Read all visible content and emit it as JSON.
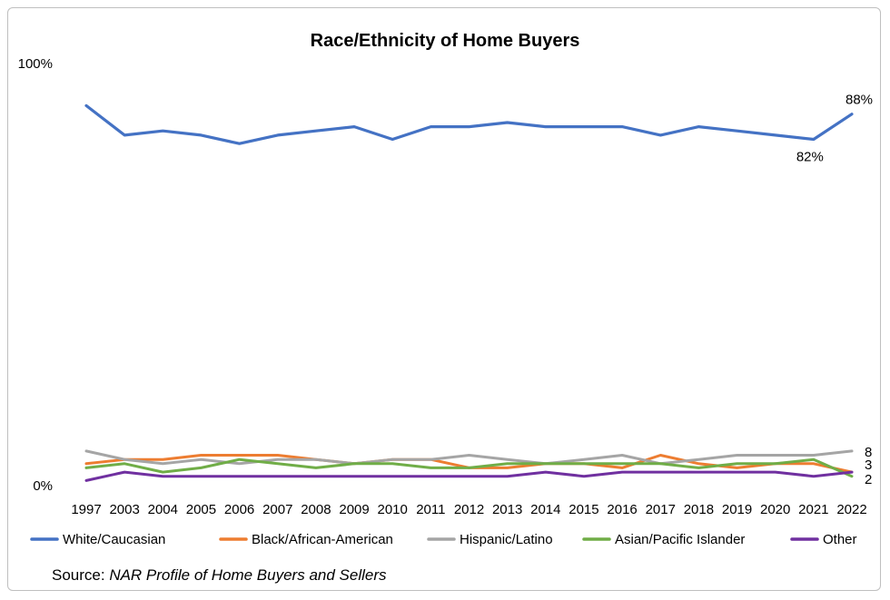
{
  "chart_data": {
    "type": "line",
    "title": "Race/Ethnicity of Home Buyers",
    "y_tick_labels": [
      "100%",
      "0%"
    ],
    "ylim": [
      0,
      100
    ],
    "grid": false,
    "legend_position": "bottom",
    "categories": [
      "1997",
      "2003",
      "2004",
      "2005",
      "2006",
      "2007",
      "2008",
      "2009",
      "2010",
      "2011",
      "2012",
      "2013",
      "2014",
      "2015",
      "2016",
      "2017",
      "2018",
      "2019",
      "2020",
      "2021",
      "2022"
    ],
    "series": [
      {
        "name": "White/Caucasian",
        "color": "#4472C4",
        "values": [
          90,
          83,
          84,
          83,
          81,
          83,
          84,
          85,
          82,
          85,
          85,
          86,
          85,
          85,
          85,
          83,
          85,
          84,
          83,
          82,
          88
        ]
      },
      {
        "name": "Black/African-American",
        "color": "#ED7D31",
        "values": [
          5,
          6,
          6,
          7,
          7,
          7,
          6,
          5,
          6,
          6,
          4,
          4,
          5,
          5,
          4,
          7,
          5,
          4,
          5,
          5,
          3
        ]
      },
      {
        "name": "Hispanic/Latino",
        "color": "#A5A5A5",
        "values": [
          8,
          6,
          5,
          6,
          5,
          6,
          6,
          5,
          6,
          6,
          7,
          6,
          5,
          6,
          7,
          5,
          6,
          7,
          7,
          7,
          8
        ]
      },
      {
        "name": "Asian/Pacific Islander",
        "color": "#70AD47",
        "values": [
          4,
          5,
          3,
          4,
          6,
          5,
          4,
          5,
          5,
          4,
          4,
          5,
          5,
          5,
          5,
          5,
          4,
          5,
          5,
          6,
          2
        ]
      },
      {
        "name": "Other",
        "color": "#7030A0",
        "values": [
          1,
          3,
          2,
          2,
          2,
          2,
          2,
          2,
          2,
          2,
          2,
          2,
          3,
          2,
          3,
          3,
          3,
          3,
          3,
          2,
          3
        ]
      }
    ],
    "annotations": [
      {
        "series": 0,
        "index": 20,
        "text": "88%",
        "placement": "above"
      },
      {
        "series": 0,
        "index": 19,
        "text": "82%",
        "placement": "below"
      },
      {
        "series": 2,
        "index": 20,
        "text": "8",
        "placement": "right"
      },
      {
        "series": 1,
        "index": 20,
        "text": "3",
        "placement": "right"
      },
      {
        "series": 3,
        "index": 20,
        "text": "2",
        "placement": "right"
      }
    ]
  },
  "source": {
    "prefix": "Source: ",
    "name": "NAR Profile of Home Buyers and Sellers"
  }
}
